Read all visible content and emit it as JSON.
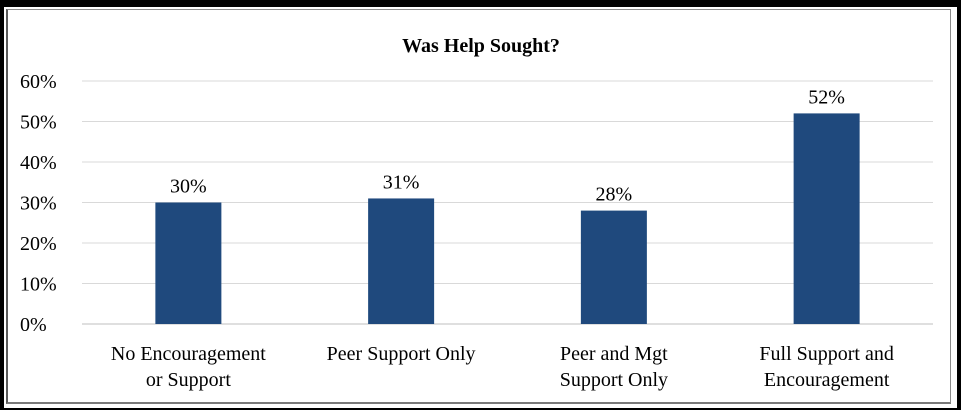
{
  "chart_data": {
    "type": "bar",
    "title": "Was Help Sought?",
    "xlabel": "",
    "ylabel": "",
    "categories": [
      [
        "No Encouragement",
        "or Support"
      ],
      [
        "Peer Support Only"
      ],
      [
        "Peer and Mgt",
        "Support Only"
      ],
      [
        "Full Support and",
        "Encouragement"
      ]
    ],
    "values": [
      30,
      31,
      28,
      52
    ],
    "data_labels": [
      "30%",
      "31%",
      "28%",
      "52%"
    ],
    "ylim": [
      0,
      60
    ],
    "yticks": [
      0,
      10,
      20,
      30,
      40,
      50,
      60
    ],
    "ytick_labels": [
      "0%",
      "10%",
      "20%",
      "30%",
      "40%",
      "50%",
      "60%"
    ],
    "bar_color": "#1f497d",
    "grid": true,
    "legend": "none"
  }
}
